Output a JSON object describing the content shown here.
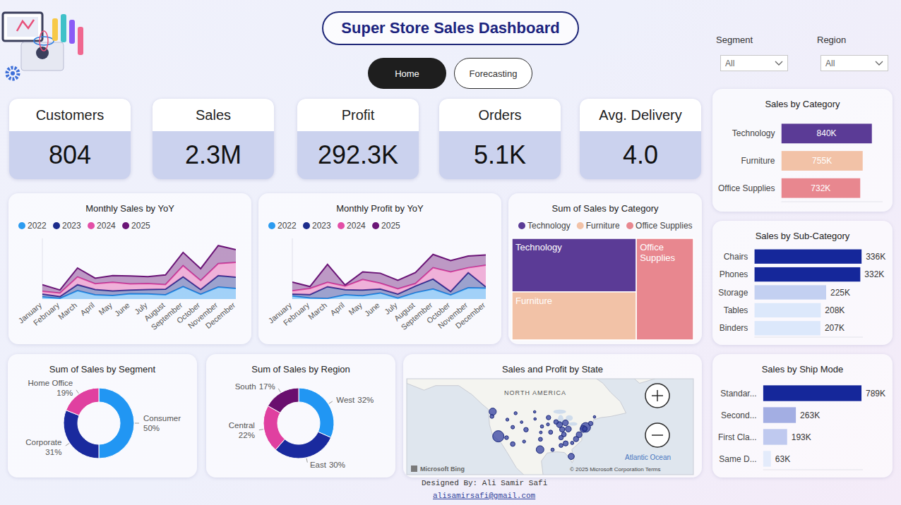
{
  "header": {
    "title": "Super Store Sales Dashboard",
    "tabs": [
      {
        "label": "Home",
        "active": true
      },
      {
        "label": "Forecasting",
        "active": false
      }
    ]
  },
  "filters": [
    {
      "label": "Segment",
      "value": "All"
    },
    {
      "label": "Region",
      "value": "All"
    }
  ],
  "kpis": [
    {
      "label": "Customers",
      "value": "804"
    },
    {
      "label": "Sales",
      "value": "2.3M"
    },
    {
      "label": "Profit",
      "value": "292.3K"
    },
    {
      "label": "Orders",
      "value": "5.1K"
    },
    {
      "label": "Avg. Delivery",
      "value": "4.0"
    }
  ],
  "chart_data": [
    {
      "type": "area",
      "title": "Monthly Sales by YoY",
      "stacked": true,
      "legend": "top-left",
      "tick_labels": "x",
      "categories": [
        "January",
        "February",
        "March",
        "April",
        "May",
        "June",
        "July",
        "August",
        "September",
        "October",
        "November",
        "December"
      ],
      "ylim": [
        0,
        400000
      ],
      "series": [
        {
          "name": "2022",
          "color": "#2b9bf0",
          "values": [
            14237,
            4520,
            55691,
            28295,
            23648,
            34595,
            33946,
            27909,
            81777,
            31453,
            78629,
            69546
          ]
        },
        {
          "name": "2023",
          "color": "#1c2c8c",
          "values": [
            18174,
            11951,
            38726,
            34195,
            30132,
            24797,
            28765,
            36898,
            64596,
            31405,
            75973,
            74920
          ]
        },
        {
          "name": "2024",
          "color": "#e34ea6",
          "values": [
            18542,
            22979,
            51716,
            38750,
            56988,
            40345,
            39262,
            31115,
            73410,
            59688,
            79412,
            96999
          ]
        },
        {
          "name": "2025",
          "color": "#6b1577",
          "values": [
            43971,
            20301,
            58872,
            36522,
            44261,
            52982,
            45264,
            63121,
            87867,
            77777,
            118448,
            83829
          ]
        }
      ]
    },
    {
      "type": "area",
      "title": "Monthly Profit by YoY",
      "stacked": true,
      "legend": "top-left",
      "tick_labels": "x",
      "categories": [
        "January",
        "February",
        "March",
        "April",
        "May",
        "June",
        "July",
        "August",
        "September",
        "October",
        "November",
        "December"
      ],
      "ylim": [
        0,
        50000
      ],
      "series": [
        {
          "name": "2022",
          "color": "#2b9bf0",
          "values": [
            2500,
            900,
            500,
            3500,
            2700,
            5000,
            800,
            5300,
            8300,
            3400,
            9300,
            9000
          ]
        },
        {
          "name": "2023",
          "color": "#1c2c8c",
          "values": [
            1500,
            2800,
            9700,
            4200,
            4700,
            3300,
            3300,
            5400,
            8200,
            2800,
            12500,
            1000
          ]
        },
        {
          "name": "2024",
          "color": "#e34ea6",
          "values": [
            2800,
            5000,
            3600,
            3000,
            8700,
            4800,
            4400,
            2100,
            9300,
            16200,
            4000,
            17900
          ]
        },
        {
          "name": "2025",
          "color": "#6b1577",
          "values": [
            7100,
            1600,
            14800,
            900,
            6300,
            8200,
            7000,
            9000,
            11000,
            9300,
            9700,
            8500
          ]
        }
      ]
    },
    {
      "type": "treemap",
      "title": "Sum of Sales by Category",
      "legend": "top-left",
      "categories": [
        "Technology",
        "Furniture",
        "Office Supplies"
      ],
      "values": [
        840000,
        755000,
        732000
      ],
      "colors": [
        "#5b3b96",
        "#f2c2a7",
        "#e8878f"
      ]
    },
    {
      "type": "bar",
      "orientation": "horizontal",
      "title": "Sales by Category",
      "tick_labels": "y",
      "data_labels": true,
      "categories": [
        "Technology",
        "Furniture",
        "Office Supplies"
      ],
      "values": [
        840000,
        755000,
        732000
      ],
      "value_labels": [
        "840K",
        "755K",
        "732K"
      ],
      "xlim": [
        0,
        940000
      ],
      "colors": [
        "#5b3b96",
        "#f2c2a7",
        "#e8878f"
      ]
    },
    {
      "type": "bar",
      "orientation": "horizontal",
      "title": "Sales by Sub-Category",
      "tick_labels": "y",
      "data_labels": true,
      "categories": [
        "Chairs",
        "Phones",
        "Storage",
        "Tables",
        "Binders"
      ],
      "values": [
        336000,
        332000,
        225000,
        208000,
        207000
      ],
      "value_labels": [
        "336K",
        "332K",
        "225K",
        "208K",
        "207K"
      ],
      "xlim": [
        0,
        340000
      ],
      "colors": [
        "#15279a",
        "#15279a",
        "#c3d0f1",
        "#dce8fb",
        "#dce8fb"
      ]
    },
    {
      "type": "bar",
      "orientation": "horizontal",
      "title": "Sales by Ship Mode",
      "tick_labels": "y",
      "data_labels": true,
      "categories": [
        "Standar...",
        "Second...",
        "First Cla...",
        "Same D..."
      ],
      "values": [
        789000,
        263000,
        193000,
        63000
      ],
      "value_labels": [
        "789K",
        "263K",
        "193K",
        "63K"
      ],
      "xlim": [
        0,
        800000
      ],
      "colors": [
        "#15279a",
        "#a3aee3",
        "#bfc9ef",
        "#e3ebfb"
      ]
    },
    {
      "type": "donut",
      "title": "Sum of Sales by Segment",
      "data_labels": true,
      "categories": [
        "Consumer",
        "Corporate",
        "Home Office"
      ],
      "values": [
        50,
        31,
        19
      ],
      "value_labels": [
        "50%",
        "31%",
        "19%"
      ],
      "colors": [
        "#2196f3",
        "#1a2a9e",
        "#e040a0"
      ]
    },
    {
      "type": "donut",
      "title": "Sum of Sales by Region",
      "data_labels": true,
      "categories": [
        "West",
        "East",
        "Central",
        "South"
      ],
      "values": [
        32,
        30,
        22,
        17
      ],
      "value_labels": [
        "32%",
        "30%",
        "22%",
        "17%"
      ],
      "colors": [
        "#2196f3",
        "#1a2a9e",
        "#e040a0",
        "#6a0f6e"
      ]
    },
    {
      "type": "map",
      "title": "Sales and Profit by State",
      "tick_labels": false,
      "color": "#3b46a3",
      "xlim": [
        -167,
        -18
      ],
      "ylim": [
        20,
        62
      ],
      "x": [
        -119.4,
        -74.0,
        -97.7,
        -122.3,
        -75.2,
        -81.5,
        -87.6,
        -83.0,
        -84.5,
        -77.4,
        -79.0,
        -86.2,
        -84.4,
        -85.3,
        -74.4,
        -111.9,
        -89.4,
        -105.0,
        -86.8,
        -93.3,
        -71.4,
        -92.2,
        -97.5,
        -86.8,
        -122.7,
        -115.1,
        -111.9,
        -91.2,
        -81.0,
        -96.7,
        -110.4,
        -106.0,
        -93.6,
        -97.3,
        -114.7,
        -100.5,
        -100.3,
        -107.3,
        -69.4
      ],
      "values": [
        36.8,
        40.7,
        31.0,
        47.6,
        40.0,
        28.0,
        41.9,
        40.0,
        42.7,
        37.5,
        35.6,
        39.8,
        33.7,
        37.6,
        40.1,
        33.4,
        43.1,
        39.7,
        36.2,
        45.0,
        42.4,
        38.6,
        35.5,
        32.8,
        45.5,
        36.2,
        40.8,
        30.9,
        33.9,
        41.1,
        46.9,
        34.5,
        42.0,
        38.5,
        44.1,
        47.5,
        44.4,
        43.0,
        45.3
      ],
      "sizes": [
        457688,
        310876,
        170188,
        138641,
        116512,
        89474,
        80166,
        78258,
        76270,
        70637,
        55603,
        53555,
        49096,
        36592,
        35764,
        35282,
        32115,
        32108,
        30662,
        29863,
        28634,
        22205,
        19683,
        19511,
        17431,
        16729,
        11220,
        9217,
        8482,
        7465,
        5589,
        4784,
        4580,
        2914,
        4382,
        920,
        1316,
        1603,
        1271
      ],
      "annotations": [
        "NORTH AMERICA",
        "Atlantic Ocean",
        "Microsoft Bing",
        "© 2025 Microsoft Corporation Terms"
      ]
    }
  ],
  "footer": {
    "credit": "Designed By: Ali Samir Safi",
    "email": "alisamirsafi@gmail.com"
  }
}
